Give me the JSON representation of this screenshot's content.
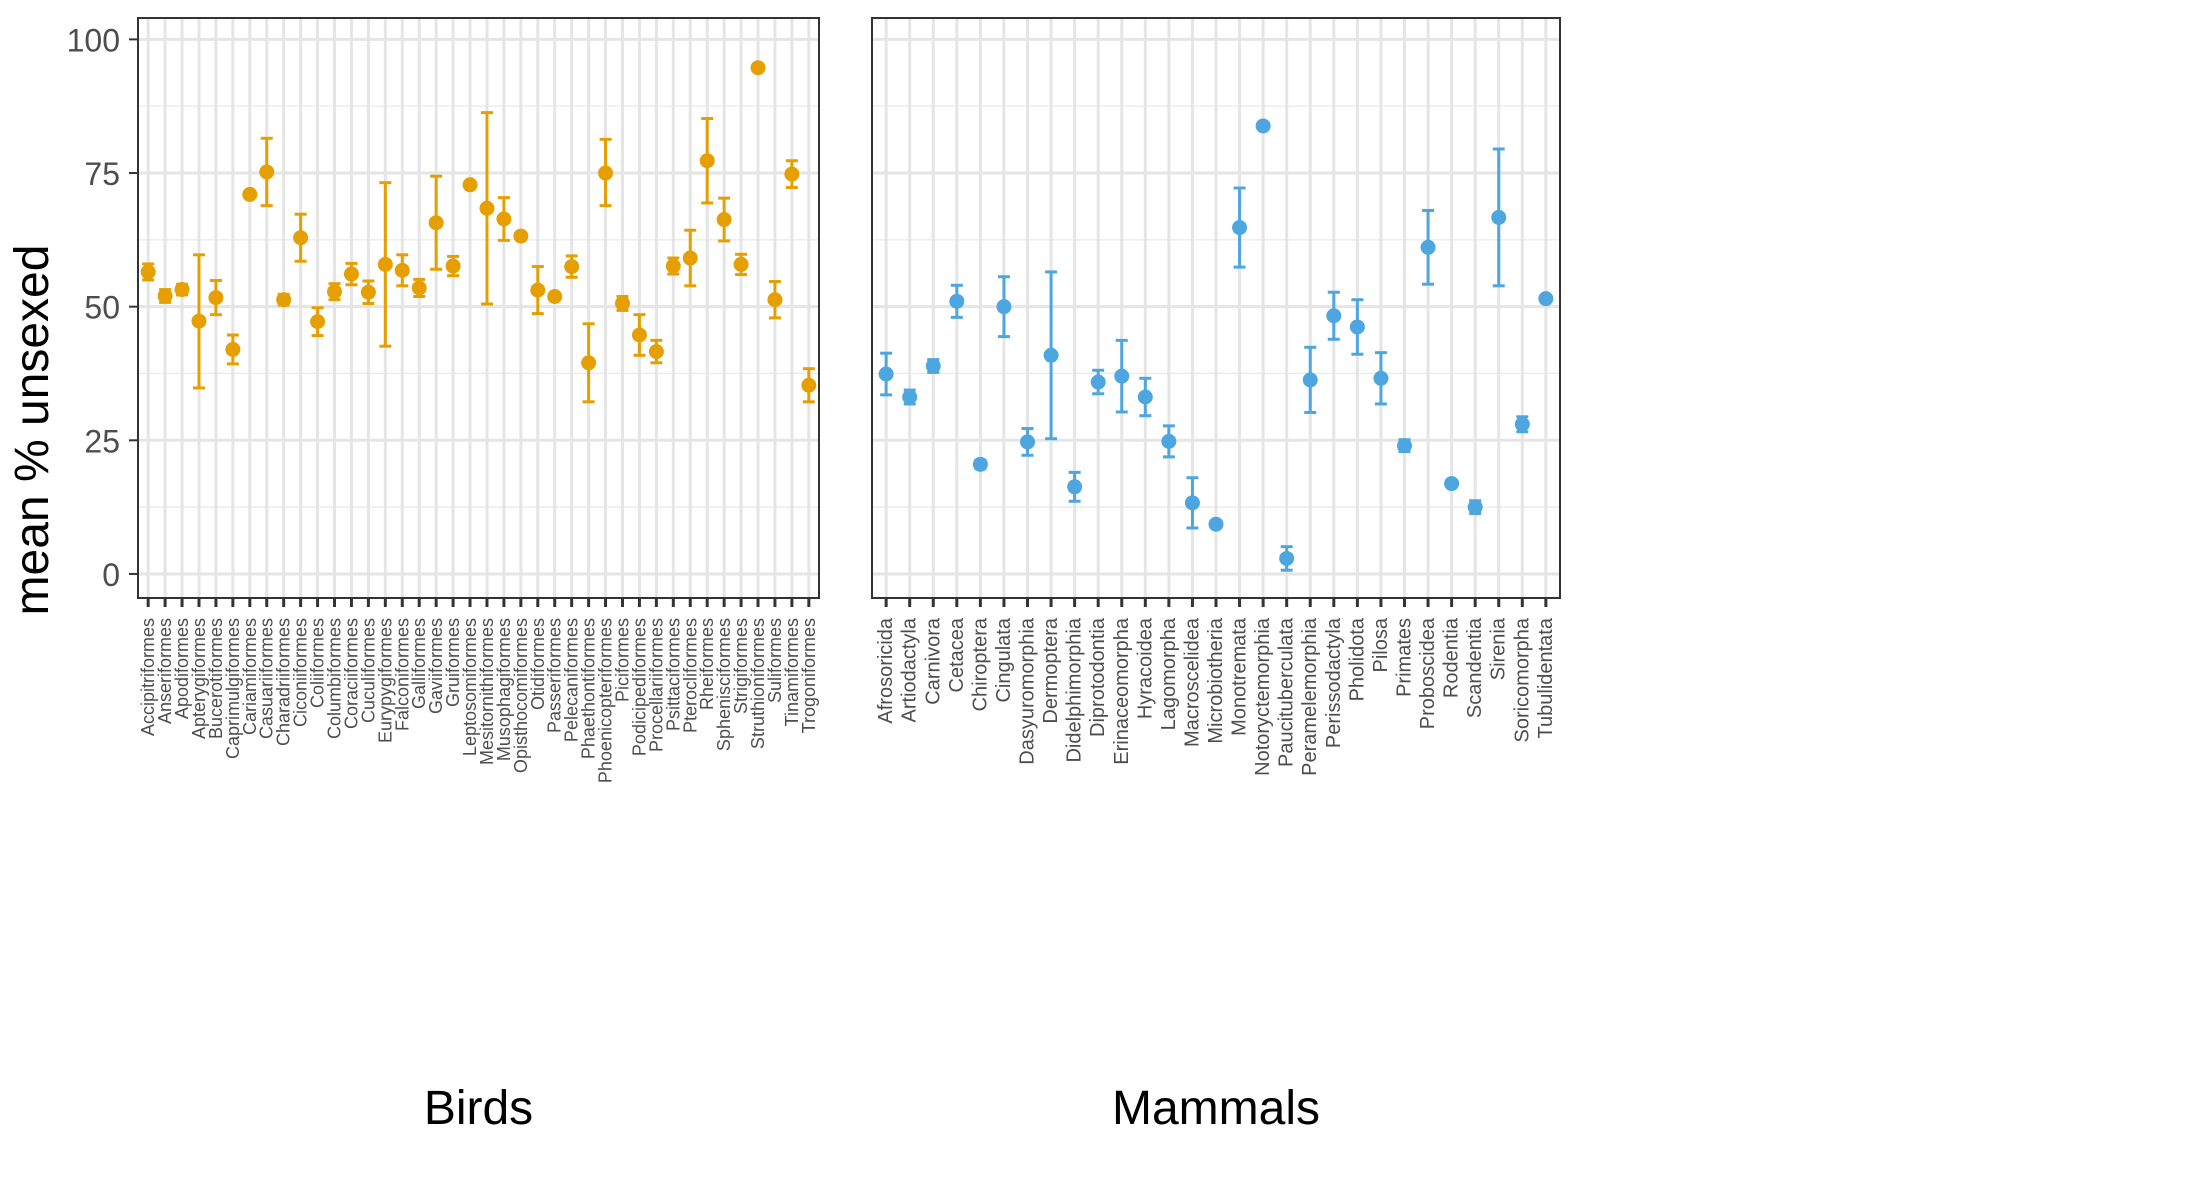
{
  "chart_data": {
    "type": "scatter",
    "ylabel": "mean % unsexed",
    "ylim": [
      -4.5,
      104
    ],
    "yticks": [
      0,
      25,
      50,
      75,
      100
    ],
    "grid": true,
    "legend": "none",
    "panels": [
      {
        "xlabel": "Birds",
        "color": "#E69F00",
        "categories": [
          "Accipitriformes",
          "Anseriformes",
          "Apodiformes",
          "Apterygiformes",
          "Bucerotiformes",
          "Caprimulgiformes",
          "Cariamiformes",
          "Casuariiformes",
          "Charadriiformes",
          "Ciconiiformes",
          "Coliiformes",
          "Columbiformes",
          "Coraciiformes",
          "Cuculiformes",
          "Eurypygiformes",
          "Falconiformes",
          "Galliformes",
          "Gaviiformes",
          "Gruiformes",
          "Leptosomiformes",
          "Mesitornithiformes",
          "Musophagiformes",
          "Opisthocomiformes",
          "Otidiformes",
          "Passeriformes",
          "Pelecaniformes",
          "Phaethontiformes",
          "Phoenicopteriformes",
          "Piciformes",
          "Podicipediformes",
          "Procellariiformes",
          "Psittaciformes",
          "Pterocliformes",
          "Rheiformes",
          "Sphenisciformes",
          "Strigiformes",
          "Struthioniformes",
          "Suliformes",
          "Tinamiformes",
          "Trogoniformes"
        ],
        "values": [
          56.5,
          52.0,
          53.2,
          47.3,
          51.7,
          42.0,
          71.0,
          75.2,
          51.3,
          62.9,
          47.2,
          52.8,
          56.1,
          52.7,
          57.9,
          56.8,
          53.5,
          65.7,
          57.6,
          72.8,
          68.4,
          66.4,
          63.2,
          53.1,
          51.9,
          57.5,
          39.5,
          75.0,
          50.6,
          44.7,
          41.6,
          57.6,
          59.1,
          77.3,
          66.3,
          57.9,
          94.7,
          51.3,
          74.8,
          35.3
        ],
        "lower": [
          55.0,
          50.8,
          52.2,
          34.8,
          48.5,
          39.3,
          null,
          68.9,
          50.3,
          58.5,
          44.6,
          51.3,
          54.1,
          50.6,
          42.6,
          53.9,
          51.9,
          57.0,
          55.8,
          null,
          50.5,
          62.4,
          null,
          48.7,
          null,
          55.5,
          32.2,
          68.9,
          49.3,
          40.9,
          39.5,
          56.1,
          53.9,
          69.4,
          62.3,
          56.0,
          null,
          47.9,
          72.3,
          32.2
        ],
        "upper": [
          58.0,
          53.2,
          54.2,
          59.7,
          54.9,
          44.7,
          null,
          81.5,
          52.3,
          67.3,
          49.8,
          54.3,
          58.1,
          54.8,
          73.2,
          59.7,
          55.1,
          74.4,
          59.4,
          null,
          86.3,
          70.4,
          null,
          57.5,
          null,
          59.5,
          46.8,
          81.3,
          51.9,
          48.5,
          43.7,
          59.1,
          64.3,
          85.2,
          70.3,
          59.8,
          null,
          54.7,
          77.3,
          38.4
        ]
      },
      {
        "xlabel": "Mammals",
        "color": "#4DA6E0",
        "categories": [
          "Afrosoricida",
          "Artiodactyla",
          "Carnivora",
          "Cetacea",
          "Chiroptera",
          "Cingulata",
          "Dasyuromorphia",
          "Dermoptera",
          "Didelphimorphia",
          "Diprotodontia",
          "Erinaceomorpha",
          "Hyracoidea",
          "Lagomorpha",
          "Macroscelidea",
          "Microbiotheria",
          "Monotremata",
          "Notoryctemorphia",
          "Paucituberculata",
          "Peramelemorphia",
          "Perissodactyla",
          "Pholidota",
          "Pilosa",
          "Primates",
          "Proboscidea",
          "Rodentia",
          "Scandentia",
          "Sirenia",
          "Soricomorpha",
          "Tubulidentata"
        ],
        "values": [
          37.4,
          33.1,
          38.9,
          51.0,
          20.5,
          50.0,
          24.7,
          40.9,
          16.3,
          35.9,
          37.0,
          33.1,
          24.8,
          13.3,
          9.3,
          64.8,
          83.8,
          2.9,
          36.3,
          48.3,
          46.2,
          36.6,
          24.0,
          61.1,
          16.9,
          12.5,
          66.7,
          28.0,
          51.5
        ],
        "lower": [
          33.5,
          31.8,
          37.7,
          48.0,
          19.7,
          44.4,
          22.2,
          25.3,
          13.6,
          33.7,
          30.3,
          29.6,
          21.9,
          8.6,
          null,
          57.4,
          null,
          0.7,
          30.2,
          43.9,
          41.1,
          31.8,
          22.9,
          54.2,
          null,
          11.3,
          53.9,
          26.6,
          null
        ],
        "upper": [
          41.3,
          34.4,
          40.1,
          54.0,
          21.3,
          55.6,
          27.2,
          56.5,
          19.0,
          38.1,
          43.7,
          36.6,
          27.7,
          18.0,
          null,
          72.2,
          null,
          5.1,
          42.4,
          52.7,
          51.3,
          41.4,
          25.1,
          68.0,
          null,
          13.7,
          79.5,
          29.4,
          null
        ]
      }
    ]
  }
}
